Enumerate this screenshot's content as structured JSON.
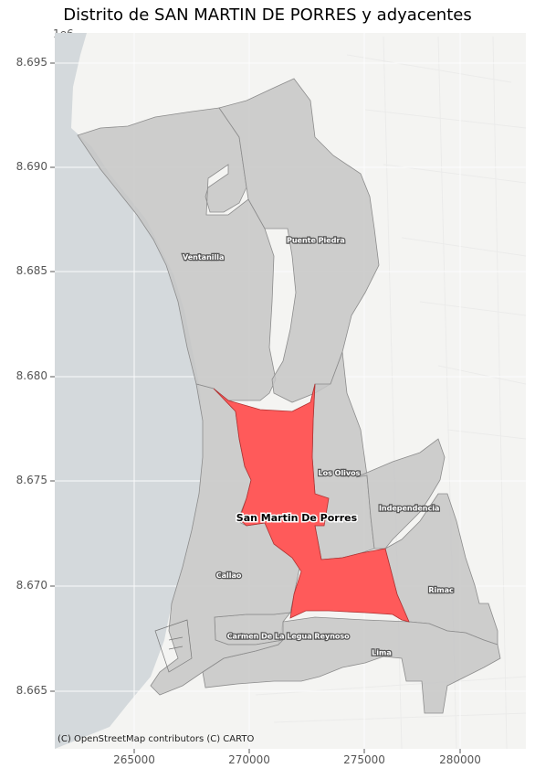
{
  "title": "Distrito de SAN MARTIN DE PORRES y adyacentes",
  "y_offset_label": "1e6",
  "attribution": "(C) OpenStreetMap contributors (C) CARTO",
  "colors": {
    "ocean": "#d4d9dc",
    "land": "#f2f2f2",
    "district_fill": "#c9c9c9",
    "target_fill": "#ff5a5a",
    "grid": "#ffffff"
  },
  "chart_data": {
    "type": "map",
    "x_ticks": [
      "265000",
      "270000",
      "275000",
      "280000"
    ],
    "y_ticks": [
      "8.665",
      "8.670",
      "8.675",
      "8.680",
      "8.685",
      "8.690",
      "8.695"
    ],
    "xlim": [
      260700,
      282900
    ],
    "ylim": [
      8662300,
      8696500
    ],
    "grid": true,
    "highlighted_district": "San Martin De Porres",
    "labels": [
      {
        "name": "Ventanilla",
        "x": 267700,
        "y": 8685800
      },
      {
        "name": "Puente Piedra",
        "x": 273000,
        "y": 8686600
      },
      {
        "name": "Los Olivos",
        "x": 274100,
        "y": 8675500
      },
      {
        "name": "Independencia",
        "x": 277400,
        "y": 8673800
      },
      {
        "name": "San Martin De Porres",
        "x": 272100,
        "y": 8673300,
        "bold": true
      },
      {
        "name": "Callao",
        "x": 268900,
        "y": 8670600
      },
      {
        "name": "Rimac",
        "x": 278900,
        "y": 8669900
      },
      {
        "name": "Carmen De La Legua Reynoso",
        "x": 271700,
        "y": 8667700
      },
      {
        "name": "Lima",
        "x": 276100,
        "y": 8666900
      }
    ]
  }
}
